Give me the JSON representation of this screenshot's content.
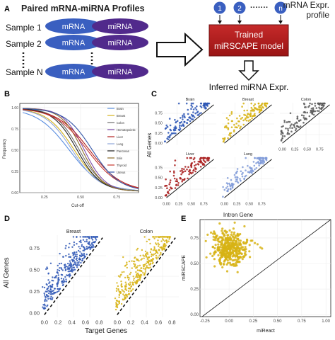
{
  "panel_a": {
    "letter": "A",
    "title": "Paired mRNA-miRNA Profiles",
    "sample_labels": [
      "Sample 1",
      "Sample 2",
      "Sample N"
    ],
    "mrna_label": "mRNA",
    "mirna_label": "miRNA",
    "input_nodes": [
      "1",
      "2",
      "n"
    ],
    "input_dots": "·······",
    "mrna_profile_label": [
      "mRNA Expr.",
      "profile"
    ],
    "model_label": [
      "Trained",
      "miRSCAPE model"
    ],
    "output_label": "Inferred miRNA Expr.",
    "colors": {
      "mrna": "#3a5fc0",
      "mirna": "#512a8c",
      "model": "#b51d1d",
      "node": "#3a5fc0"
    }
  },
  "panel_b": {
    "letter": "B",
    "chart_data": {
      "type": "line",
      "xlabel": "Cut-off",
      "ylabel": "Frequency",
      "xticks": [
        "0.25",
        "0.50",
        "0.75"
      ],
      "yticks": [
        "0.00",
        "0.25",
        "0.50",
        "0.75",
        "1.00"
      ],
      "xlim": [
        0.08,
        0.9
      ],
      "ylim": [
        0,
        1.05
      ],
      "legend_position": "right",
      "series": [
        {
          "name": "Brain",
          "color": "#5b8fe0"
        },
        {
          "name": "Breast",
          "color": "#d4b21c"
        },
        {
          "name": "Colon",
          "color": "#6e6e6e"
        },
        {
          "name": "Hematopoietic",
          "color": "#7a4aa8"
        },
        {
          "name": "Liver",
          "color": "#b22222"
        },
        {
          "name": "Lung",
          "color": "#8fa6d9"
        },
        {
          "name": "Pancreas",
          "color": "#222222"
        },
        {
          "name": "Skin",
          "color": "#8b6b2a"
        },
        {
          "name": "Thyroid",
          "color": "#c6372f"
        },
        {
          "name": "Uterus",
          "color": "#3557a8"
        }
      ]
    }
  },
  "panel_c": {
    "letter": "C",
    "xlabel": "Intron Gene",
    "ylabel": "All Genes",
    "tick_labels": [
      "0.00",
      "0.25",
      "0.50",
      "0.75"
    ],
    "yticks": [
      "0.75",
      "0.50",
      "0.25",
      "0.00"
    ],
    "facets": [
      {
        "name": "Brain",
        "color": "#2d56b5"
      },
      {
        "name": "Breast",
        "color": "#d7b314"
      },
      {
        "name": "Colon",
        "color": "#5a5a5a"
      },
      {
        "name": "Liver",
        "color": "#a81c1c"
      },
      {
        "name": "Lung",
        "color": "#7f9ad8"
      }
    ]
  },
  "panel_d": {
    "letter": "D",
    "xlabel": "Target Genes",
    "ylabel": "All Genes",
    "xticks": [
      "0.0",
      "0.2",
      "0.4",
      "0.6",
      "0.8"
    ],
    "yticks": [
      "0.75",
      "0.50",
      "0.25",
      "0.00"
    ],
    "facets": [
      {
        "name": "Breast",
        "color": "#2d56b5"
      },
      {
        "name": "Colon",
        "color": "#d7b314"
      }
    ]
  },
  "panel_e": {
    "letter": "E",
    "xlabel": "miReact",
    "ylabel": "miRSCAPE",
    "xticks": [
      "-0.25",
      "0.00",
      "0.25",
      "0.50",
      "0.75",
      "1.00"
    ],
    "yticks": [
      "0.75",
      "0.50",
      "0.25",
      "0.00"
    ],
    "color": "#d7b314"
  }
}
